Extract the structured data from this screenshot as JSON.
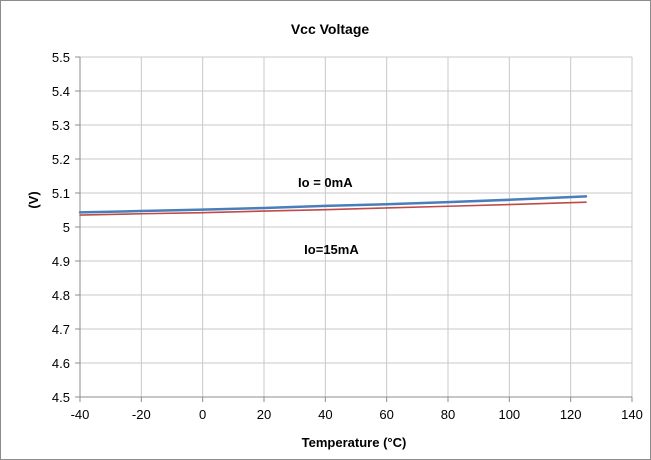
{
  "chart_data": {
    "type": "line",
    "title": "Vcc Voltage",
    "xlabel": "Temperature (°C)",
    "ylabel": "(V)",
    "xlim": [
      -40,
      140
    ],
    "ylim": [
      4.5,
      5.5
    ],
    "xticks": [
      "-40",
      "-20",
      "0",
      "20",
      "40",
      "60",
      "80",
      "100",
      "120",
      "140"
    ],
    "yticks": [
      "4.5",
      "4.6",
      "4.7",
      "4.8",
      "4.9",
      "5",
      "5.1",
      "5.2",
      "5.3",
      "5.4",
      "5.5"
    ],
    "grid": true,
    "series": [
      {
        "name": "Io = 0mA",
        "color": "#4a7ebb",
        "x": [
          -40,
          -20,
          0,
          20,
          40,
          60,
          80,
          100,
          125
        ],
        "y": [
          5.043,
          5.047,
          5.051,
          5.056,
          5.062,
          5.067,
          5.073,
          5.08,
          5.09
        ]
      },
      {
        "name": "Io=15mA",
        "color": "#be4b48",
        "x": [
          -40,
          -20,
          0,
          20,
          40,
          60,
          80,
          100,
          125
        ],
        "y": [
          5.035,
          5.039,
          5.042,
          5.047,
          5.051,
          5.056,
          5.061,
          5.066,
          5.073
        ]
      }
    ],
    "annotations": [
      {
        "text": "Io = 0mA",
        "x": 40,
        "y": 5.117
      },
      {
        "text": "Io=15mA",
        "x": 42,
        "y": 4.92
      }
    ]
  }
}
